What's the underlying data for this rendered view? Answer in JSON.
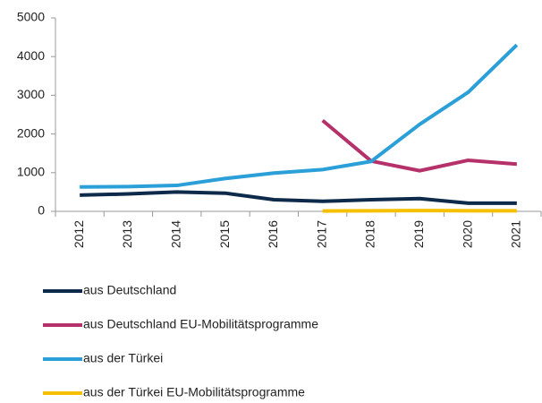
{
  "chart_data": {
    "type": "line",
    "categories": [
      "2012",
      "2013",
      "2014",
      "2015",
      "2016",
      "2017",
      "2018",
      "2019",
      "2020",
      "2021"
    ],
    "series": [
      {
        "name": "aus Deutschland",
        "color": "#0d2a4a",
        "values": [
          420,
          450,
          500,
          470,
          300,
          260,
          300,
          330,
          210,
          210
        ]
      },
      {
        "name": "aus Deutschland EU-Mobilitätsprogramme",
        "color": "#b5316a",
        "values": [
          null,
          null,
          null,
          null,
          null,
          2350,
          1300,
          1050,
          1320,
          1220
        ]
      },
      {
        "name": "aus der Türkei",
        "color": "#2a9fd8",
        "values": [
          630,
          640,
          670,
          850,
          990,
          1080,
          1290,
          2250,
          3080,
          4300
        ]
      },
      {
        "name": "aus der Türkei EU-Mobilitätsprogramme",
        "color": "#f5c000",
        "values": [
          null,
          null,
          null,
          null,
          null,
          10,
          15,
          20,
          15,
          15
        ]
      }
    ],
    "ylim": [
      0,
      5000
    ],
    "yticks": [
      0,
      1000,
      2000,
      3000,
      4000,
      5000
    ],
    "grid": false,
    "legend": "bottom"
  }
}
